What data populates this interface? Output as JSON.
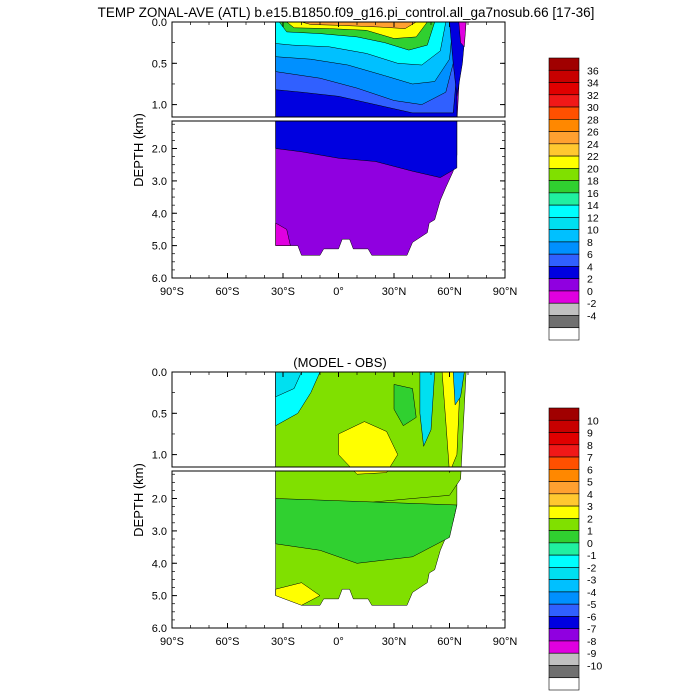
{
  "title": "TEMP ZONAL-AVE (ATL) b.e15.B1850.f09_g16.pi_control.all_ga7nosub.66 [17-36]",
  "subtitle": "(MODEL - OBS)",
  "chart_data": [
    {
      "type": "heatmap",
      "title": "TEMP ZONAL-AVE (ATL) b.e15.B1850.f09_g16.pi_control.all_ga7nosub.66 [17-36]",
      "ylabel": "DEPTH (km)",
      "xlabel": "",
      "x_ticks": [
        "90°S",
        "60°S",
        "30°S",
        "0°",
        "30°N",
        "60°N",
        "90°N"
      ],
      "y_ticks_upper": [
        "0.0",
        "0.5",
        "1.0"
      ],
      "y_ticks_lower": [
        "2.0",
        "3.0",
        "4.0",
        "5.0",
        "6.0"
      ],
      "xlim": [
        -90,
        90
      ],
      "ylim_upper": [
        0,
        1.15
      ],
      "ylim_lower": [
        1.15,
        6.0
      ],
      "colorbar": {
        "labels": [
          "36",
          "34",
          "32",
          "30",
          "28",
          "26",
          "24",
          "22",
          "20",
          "18",
          "16",
          "14",
          "12",
          "10",
          "8",
          "6",
          "4",
          "2",
          "0",
          "-2",
          "-4"
        ],
        "colors": [
          "#a00000",
          "#c80000",
          "#e00000",
          "#f01818",
          "#ff5000",
          "#ff8800",
          "#ffa030",
          "#ffc830",
          "#ffff00",
          "#80e000",
          "#30d030",
          "#20f0a0",
          "#00ffff",
          "#00e0f0",
          "#00c0ff",
          "#0090ff",
          "#3060ff",
          "#0000e0",
          "#9000e0",
          "#e000e0",
          "#c0c0c0",
          "#707070",
          "#ffffff"
        ]
      }
    },
    {
      "type": "heatmap",
      "title": "(MODEL - OBS)",
      "ylabel": "DEPTH (km)",
      "xlabel": "",
      "x_ticks": [
        "90°S",
        "60°S",
        "30°S",
        "0°",
        "30°N",
        "60°N",
        "90°N"
      ],
      "y_ticks_upper": [
        "0.0",
        "0.5",
        "1.0"
      ],
      "y_ticks_lower": [
        "2.0",
        "3.0",
        "4.0",
        "5.0",
        "6.0"
      ],
      "xlim": [
        -90,
        90
      ],
      "ylim_upper": [
        0,
        1.15
      ],
      "ylim_lower": [
        1.15,
        6.0
      ],
      "colorbar": {
        "labels": [
          "10",
          "9",
          "8",
          "7",
          "6",
          "5",
          "4",
          "3",
          "2",
          "1",
          "0",
          "-1",
          "-2",
          "-3",
          "-4",
          "-5",
          "-6",
          "-7",
          "-8",
          "-9",
          "-10"
        ],
        "colors": [
          "#a00000",
          "#c80000",
          "#e00000",
          "#f01818",
          "#ff5000",
          "#ff8800",
          "#ffa030",
          "#ffc830",
          "#ffff00",
          "#80e000",
          "#30d030",
          "#20f0a0",
          "#00ffff",
          "#00e0f0",
          "#00c0ff",
          "#0090ff",
          "#3060ff",
          "#0000e0",
          "#9000e0",
          "#e000e0",
          "#c0c0c0",
          "#707070",
          "#ffffff"
        ]
      }
    }
  ]
}
